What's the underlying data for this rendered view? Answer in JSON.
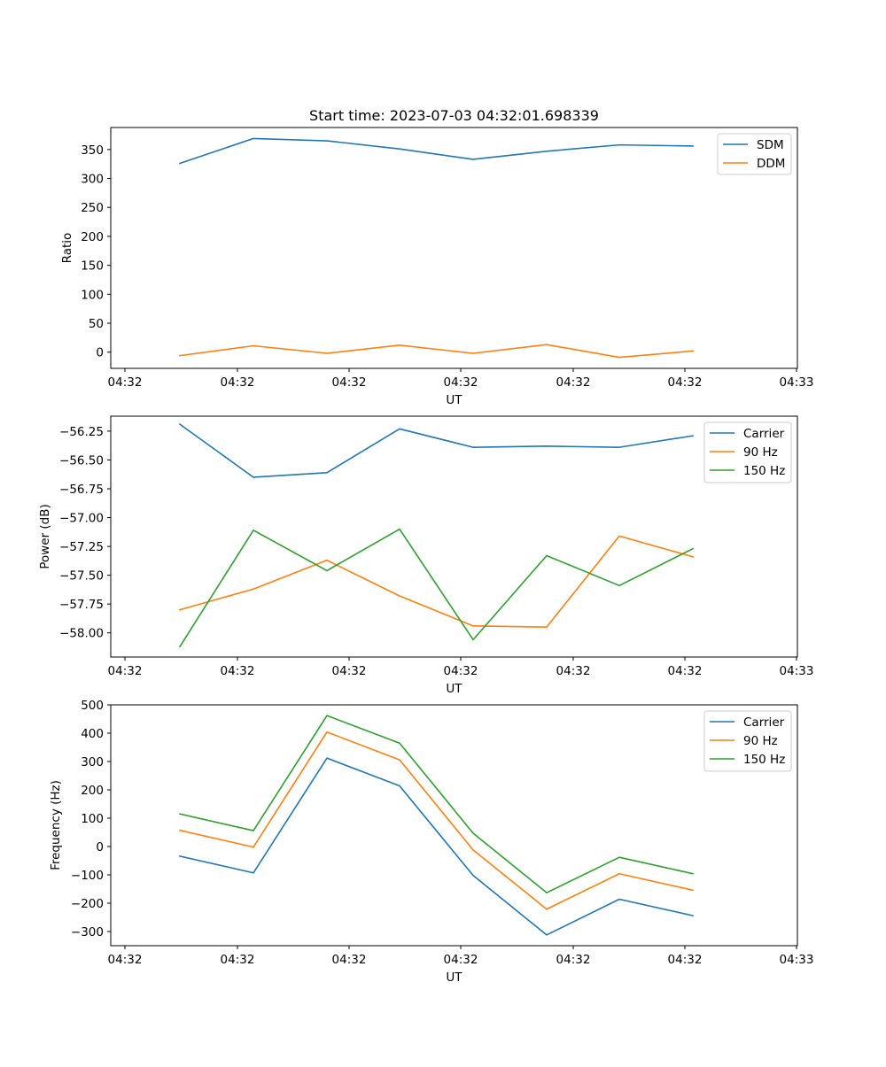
{
  "figure_title": "Start time: 2023-07-03 04:32:01.698339",
  "chart_data": [
    {
      "type": "line",
      "title": "Start time: 2023-07-03 04:32:01.698339",
      "xlabel": "UT",
      "ylabel": "Ratio",
      "x_tick_labels": [
        "04:32",
        "04:32",
        "04:32",
        "04:32",
        "04:32",
        "04:32",
        "04:32"
      ],
      "x_last_tick_label": "04:33",
      "y_ticks": [
        0,
        50,
        100,
        150,
        200,
        250,
        300,
        350
      ],
      "y_tick_labels": [
        "0",
        "50",
        "100",
        "150",
        "200",
        "250",
        "300",
        "350"
      ],
      "ylim": [
        -28,
        388
      ],
      "legend_position": "upper right",
      "series": [
        {
          "name": "SDM",
          "color": "#1f77b4",
          "values": [
            326,
            369,
            365,
            351,
            333,
            347,
            358,
            356
          ]
        },
        {
          "name": "DDM",
          "color": "#ff7f0e",
          "values": [
            -6,
            11,
            -2,
            12,
            -2,
            13,
            -9,
            2
          ]
        }
      ]
    },
    {
      "type": "line",
      "title": "",
      "xlabel": "UT",
      "ylabel": "Power (dB)",
      "x_tick_labels": [
        "04:32",
        "04:32",
        "04:32",
        "04:32",
        "04:32",
        "04:32",
        "04:32"
      ],
      "x_last_tick_label": "04:33",
      "y_ticks": [
        -58.0,
        -57.75,
        -57.5,
        -57.25,
        -57.0,
        -56.75,
        -56.5,
        -56.25
      ],
      "y_tick_labels": [
        "−58.00",
        "−57.75",
        "−57.50",
        "−57.25",
        "−57.00",
        "−56.75",
        "−56.50",
        "−56.25"
      ],
      "ylim": [
        -58.21,
        -56.12
      ],
      "legend_position": "upper right",
      "series": [
        {
          "name": "Carrier",
          "color": "#1f77b4",
          "values": [
            -56.19,
            -56.65,
            -56.61,
            -56.23,
            -56.39,
            -56.38,
            -56.39,
            -56.29
          ]
        },
        {
          "name": "90 Hz",
          "color": "#ff7f0e",
          "values": [
            -57.8,
            -57.62,
            -57.37,
            -57.68,
            -57.94,
            -57.95,
            -57.16,
            -57.34
          ]
        },
        {
          "name": "150 Hz",
          "color": "#2ca02c",
          "values": [
            -58.12,
            -57.11,
            -57.46,
            -57.1,
            -58.06,
            -57.33,
            -57.59,
            -57.27
          ]
        }
      ]
    },
    {
      "type": "line",
      "title": "",
      "xlabel": "UT",
      "ylabel": "Frequency (Hz)",
      "x_tick_labels": [
        "04:32",
        "04:32",
        "04:32",
        "04:32",
        "04:32",
        "04:32",
        "04:32"
      ],
      "x_last_tick_label": "04:33",
      "y_ticks": [
        -300,
        -200,
        -100,
        0,
        100,
        200,
        300,
        400,
        500
      ],
      "y_tick_labels": [
        "−300",
        "−200",
        "−100",
        "0",
        "100",
        "200",
        "300",
        "400",
        "500"
      ],
      "ylim": [
        -350,
        500
      ],
      "legend_position": "upper right",
      "series": [
        {
          "name": "Carrier",
          "color": "#1f77b4",
          "values": [
            -34,
            -93,
            312,
            214,
            -102,
            -312,
            -186,
            -244
          ]
        },
        {
          "name": "90 Hz",
          "color": "#ff7f0e",
          "values": [
            57,
            -2,
            404,
            306,
            -12,
            -221,
            -96,
            -154
          ]
        },
        {
          "name": "150 Hz",
          "color": "#2ca02c",
          "values": [
            115,
            56,
            462,
            365,
            47,
            -163,
            -38,
            -96
          ]
        }
      ]
    }
  ]
}
